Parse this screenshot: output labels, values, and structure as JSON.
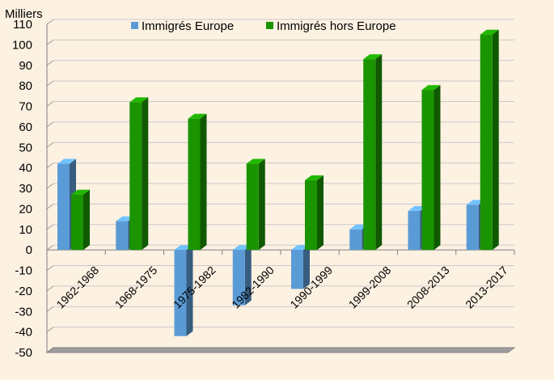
{
  "chart_data": {
    "type": "bar",
    "ylabel": "Milliers",
    "ylim": [
      -50,
      110
    ],
    "yticks": [
      110,
      100,
      90,
      80,
      70,
      60,
      50,
      40,
      30,
      20,
      10,
      0,
      -10,
      -20,
      -30,
      -40,
      -50
    ],
    "legend_position": "top",
    "grid": true,
    "categories": [
      "1962-1968",
      "1968-1975",
      "1975-1982",
      "1982-1990",
      "1990-1999",
      "1999-2008",
      "2008-2013",
      "2013-2017"
    ],
    "series": [
      {
        "name": "Immigrés Europe",
        "color": "#5b9bd5",
        "values": [
          42,
          14,
          -42,
          -27,
          -19,
          10,
          19,
          22
        ]
      },
      {
        "name": "Immigrés hors Europe",
        "color": "#1a9400",
        "values": [
          27,
          72,
          64,
          42,
          34,
          93,
          78,
          105
        ]
      }
    ]
  }
}
